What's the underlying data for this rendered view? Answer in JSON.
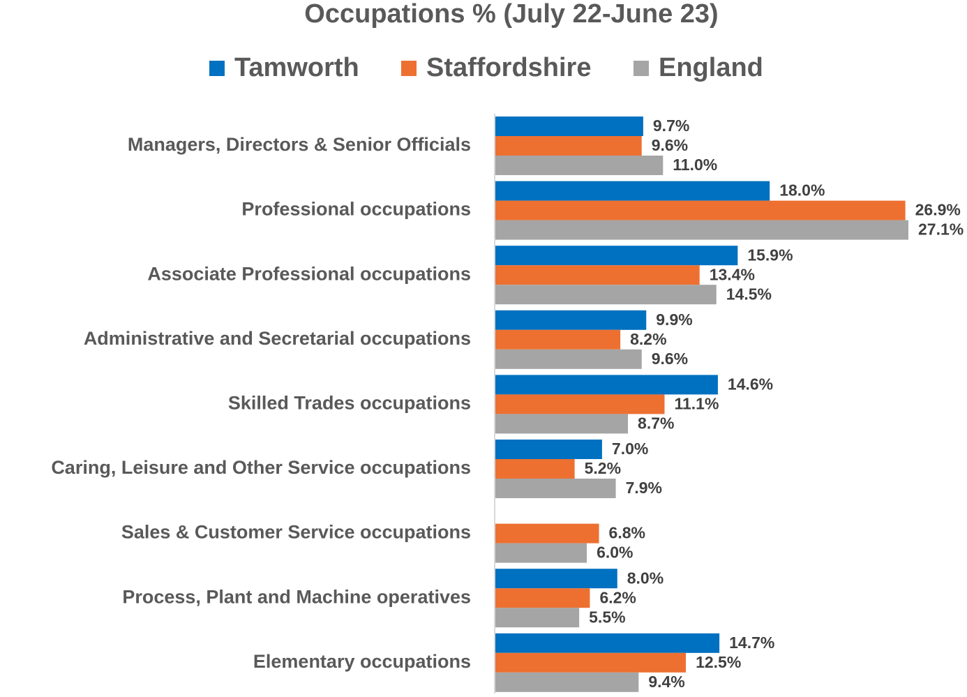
{
  "chart_data": {
    "type": "bar",
    "orientation": "horizontal",
    "title": "Occupations % (July 22-June 23)",
    "categories": [
      "Managers, Directors & Senior Officials",
      "Professional occupations",
      "Associate Professional occupations",
      "Administrative and Secretarial occupations",
      "Skilled Trades occupations",
      "Caring, Leisure and Other Service occupations",
      "Sales & Customer Service occupations",
      "Process, Plant and Machine operatives",
      "Elementary occupations"
    ],
    "series": [
      {
        "name": "Tamworth",
        "color": "#0070c0",
        "values": [
          9.7,
          18.0,
          15.9,
          9.9,
          14.6,
          7.0,
          null,
          8.0,
          14.7
        ],
        "value_labels": [
          "9.7%",
          "18.0%",
          "15.9%",
          "9.9%",
          "14.6%",
          "7.0%",
          null,
          "8.0%",
          "14.7%"
        ]
      },
      {
        "name": "Staffordshire",
        "color": "#ed7031",
        "values": [
          9.6,
          26.9,
          13.4,
          8.2,
          11.1,
          5.2,
          6.8,
          6.2,
          12.5
        ],
        "value_labels": [
          "9.6%",
          "26.9%",
          "13.4%",
          "8.2%",
          "11.1%",
          "5.2%",
          "6.8%",
          "6.2%",
          "12.5%"
        ]
      },
      {
        "name": "England",
        "color": "#a5a5a5",
        "values": [
          11.0,
          27.1,
          14.5,
          9.6,
          8.7,
          7.9,
          6.0,
          5.5,
          9.4
        ],
        "value_labels": [
          "11.0%",
          "27.1%",
          "14.5%",
          "9.6%",
          "8.7%",
          "7.9%",
          "6.0%",
          "5.5%",
          "9.4%"
        ]
      }
    ],
    "legend": "top"
  }
}
